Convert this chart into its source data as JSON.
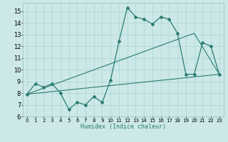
{
  "xlabel": "Humidex (Indice chaleur)",
  "bg_color": "#cce8e8",
  "grid_color": "#aad4d4",
  "line_color": "#2a7d6e",
  "xlim": [
    -0.5,
    23.5
  ],
  "ylim": [
    6,
    15.7
  ],
  "xticks": [
    0,
    1,
    2,
    3,
    4,
    5,
    6,
    7,
    8,
    9,
    10,
    11,
    12,
    13,
    14,
    15,
    16,
    17,
    18,
    19,
    20,
    21,
    22,
    23
  ],
  "yticks": [
    6,
    7,
    8,
    9,
    10,
    11,
    12,
    13,
    14,
    15
  ],
  "line1_x": [
    0,
    1,
    2,
    3,
    4,
    5,
    6,
    7,
    8,
    9,
    10,
    11,
    12,
    13,
    14,
    15,
    16,
    17,
    18,
    19,
    20,
    21,
    22,
    23
  ],
  "line1_y": [
    7.9,
    8.8,
    8.5,
    8.8,
    8.0,
    6.6,
    7.2,
    7.0,
    7.7,
    7.2,
    9.1,
    12.4,
    15.3,
    14.5,
    14.3,
    13.9,
    14.5,
    14.3,
    13.1,
    9.6,
    9.6,
    12.3,
    12.0,
    9.6
  ],
  "line2_x": [
    0,
    23
  ],
  "line2_y": [
    7.9,
    9.6
  ],
  "line3_x": [
    0,
    20,
    23
  ],
  "line3_y": [
    7.9,
    13.1,
    9.6
  ]
}
